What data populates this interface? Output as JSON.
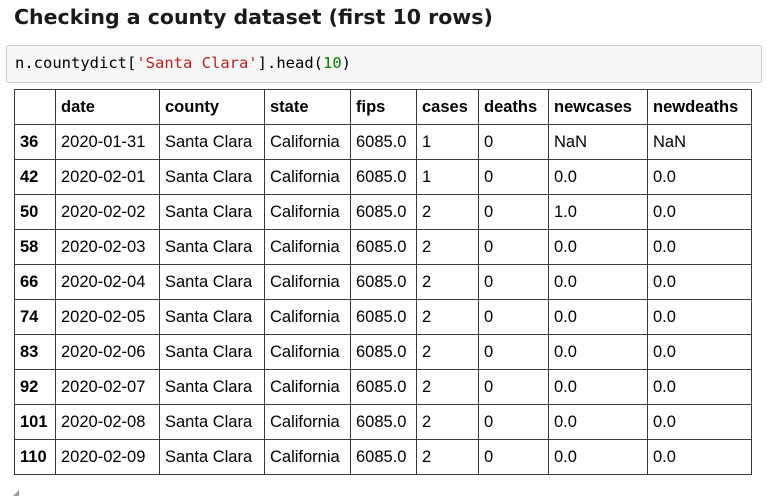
{
  "heading": "Checking a county dataset (first 10 rows)",
  "code": {
    "prefix": "n.countydict[",
    "string_arg": "'Santa Clara'",
    "middle": "].head(",
    "number_arg": "10",
    "suffix": ")"
  },
  "table": {
    "index_header": "",
    "columns": [
      "date",
      "county",
      "state",
      "fips",
      "cases",
      "deaths",
      "newcases",
      "newdeaths"
    ],
    "rows": [
      {
        "index": "36",
        "cells": [
          "2020-01-31",
          "Santa Clara",
          "California",
          "6085.0",
          "1",
          "0",
          "NaN",
          "NaN"
        ]
      },
      {
        "index": "42",
        "cells": [
          "2020-02-01",
          "Santa Clara",
          "California",
          "6085.0",
          "1",
          "0",
          "0.0",
          "0.0"
        ]
      },
      {
        "index": "50",
        "cells": [
          "2020-02-02",
          "Santa Clara",
          "California",
          "6085.0",
          "2",
          "0",
          "1.0",
          "0.0"
        ]
      },
      {
        "index": "58",
        "cells": [
          "2020-02-03",
          "Santa Clara",
          "California",
          "6085.0",
          "2",
          "0",
          "0.0",
          "0.0"
        ]
      },
      {
        "index": "66",
        "cells": [
          "2020-02-04",
          "Santa Clara",
          "California",
          "6085.0",
          "2",
          "0",
          "0.0",
          "0.0"
        ]
      },
      {
        "index": "74",
        "cells": [
          "2020-02-05",
          "Santa Clara",
          "California",
          "6085.0",
          "2",
          "0",
          "0.0",
          "0.0"
        ]
      },
      {
        "index": "83",
        "cells": [
          "2020-02-06",
          "Santa Clara",
          "California",
          "6085.0",
          "2",
          "0",
          "0.0",
          "0.0"
        ]
      },
      {
        "index": "92",
        "cells": [
          "2020-02-07",
          "Santa Clara",
          "California",
          "6085.0",
          "2",
          "0",
          "0.0",
          "0.0"
        ]
      },
      {
        "index": "101",
        "cells": [
          "2020-02-08",
          "Santa Clara",
          "California",
          "6085.0",
          "2",
          "0",
          "0.0",
          "0.0"
        ]
      },
      {
        "index": "110",
        "cells": [
          "2020-02-09",
          "Santa Clara",
          "California",
          "6085.0",
          "2",
          "0",
          "0.0",
          "0.0"
        ]
      }
    ]
  },
  "colors": {
    "string_token": "#ba2121",
    "number_token": "#008000",
    "code_background": "#f7f7f7",
    "table_border": "#3a3a3a"
  },
  "icons": {
    "resize_grip": "resize-grip-icon"
  }
}
